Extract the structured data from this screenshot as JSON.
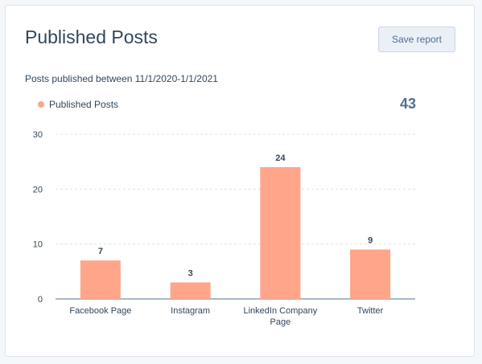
{
  "report": {
    "title": "Published Posts",
    "save_label": "Save report",
    "subtitle": "Posts published between 11/1/2020-1/1/2021",
    "total": "43"
  },
  "colors": {
    "bar": "#ffa58a",
    "title": "#33475b",
    "total": "#516f90",
    "grid": "#dfe3eb"
  },
  "chart_data": {
    "type": "bar",
    "categories": [
      "Facebook Page",
      "Instagram",
      "LinkedIn Company Page",
      "Twitter"
    ],
    "category_lines": [
      [
        "Facebook Page"
      ],
      [
        "Instagram"
      ],
      [
        "LinkedIn Company",
        "Page"
      ],
      [
        "Twitter"
      ]
    ],
    "series": [
      {
        "name": "Published Posts",
        "values": [
          7,
          3,
          24,
          9
        ]
      }
    ],
    "ylim": [
      0,
      30
    ],
    "yticks": [
      0,
      10,
      20,
      30
    ],
    "grid": true,
    "legend": "top-left"
  }
}
